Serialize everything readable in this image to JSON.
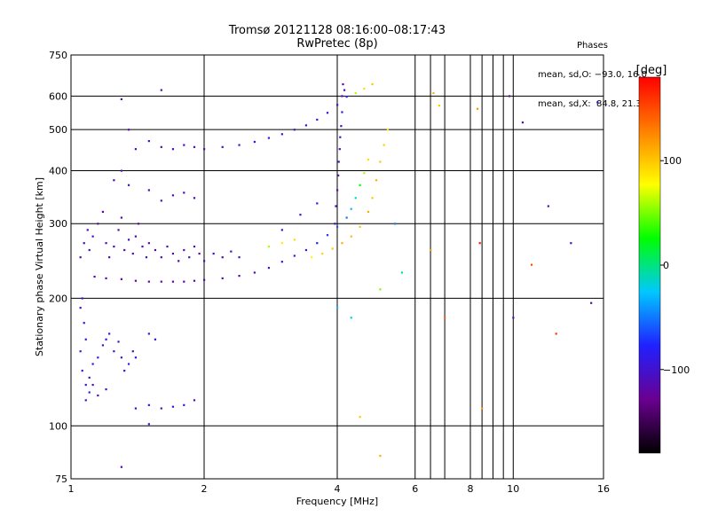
{
  "header": {
    "title_line1": "Tromsø 20121128 08:16:00–08:17:43",
    "title_line2": "RwPretec (8p)"
  },
  "stats": {
    "heading": "Phases",
    "line_o": "mean, sd,O: −93.0, 16.0",
    "line_x": "mean, sd,X:  84.8, 21.3"
  },
  "colorbar": {
    "unit": "[deg]",
    "ticks": [
      {
        "value": 100,
        "label": "100"
      },
      {
        "value": 0,
        "label": "0"
      },
      {
        "value": -100,
        "label": "−100"
      }
    ],
    "range": [
      -180,
      180
    ],
    "colors": [
      "#000000",
      "#6a0090",
      "#2020ff",
      "#00c8ff",
      "#00ff00",
      "#ffff00",
      "#ff8000",
      "#ff0000"
    ]
  },
  "chart_data": {
    "type": "scatter",
    "title": "Tromsø 20121128 08:16:00–08:17:43",
    "subtitle": "RwPretec (8p)",
    "xlabel": "Frequency [MHz]",
    "ylabel": "Stationary phase Virtual Height [km]",
    "xscale": "log",
    "yscale": "log",
    "xlim": [
      1,
      16
    ],
    "ylim": [
      75,
      750
    ],
    "grid": true,
    "xticks": [
      {
        "value": 1,
        "label": "1"
      },
      {
        "value": 2,
        "label": "2"
      },
      {
        "value": 4,
        "label": "4"
      },
      {
        "value": 6,
        "label": "6"
      },
      {
        "value": 8,
        "label": "8"
      },
      {
        "value": 10,
        "label": "10"
      },
      {
        "value": 16,
        "label": "16"
      }
    ],
    "xgrid_minor": [
      6.5,
      7,
      8.5,
      9,
      9.5
    ],
    "yticks": [
      {
        "value": 750,
        "label": "750"
      },
      {
        "value": 600,
        "label": "600"
      },
      {
        "value": 500,
        "label": "500"
      },
      {
        "value": 400,
        "label": "400"
      },
      {
        "value": 300,
        "label": "300"
      },
      {
        "value": 200,
        "label": "200"
      },
      {
        "value": 100,
        "label": "100"
      },
      {
        "value": 75,
        "label": "75"
      }
    ],
    "ygrid": [
      600,
      500,
      400,
      300,
      200,
      100
    ],
    "points": [
      [
        1.05,
        190,
        -110
      ],
      [
        1.06,
        200,
        -105
      ],
      [
        1.07,
        175,
        -100
      ],
      [
        1.08,
        160,
        -95
      ],
      [
        1.05,
        150,
        -90
      ],
      [
        1.06,
        135,
        -80
      ],
      [
        1.08,
        125,
        -90
      ],
      [
        1.1,
        120,
        -95
      ],
      [
        1.1,
        130,
        -100
      ],
      [
        1.12,
        140,
        -90
      ],
      [
        1.15,
        145,
        -85
      ],
      [
        1.18,
        155,
        -95
      ],
      [
        1.2,
        160,
        -100
      ],
      [
        1.22,
        165,
        -90
      ],
      [
        1.25,
        150,
        -95
      ],
      [
        1.28,
        158,
        -105
      ],
      [
        1.3,
        145,
        -100
      ],
      [
        1.32,
        135,
        -95
      ],
      [
        1.35,
        140,
        -90
      ],
      [
        1.38,
        150,
        -100
      ],
      [
        1.12,
        125,
        -110
      ],
      [
        1.15,
        118,
        -105
      ],
      [
        1.2,
        122,
        -100
      ],
      [
        1.08,
        115,
        -95
      ],
      [
        1.4,
        145,
        -95
      ],
      [
        1.05,
        250,
        -110
      ],
      [
        1.07,
        270,
        -105
      ],
      [
        1.09,
        290,
        -110
      ],
      [
        1.1,
        260,
        -100
      ],
      [
        1.12,
        280,
        -105
      ],
      [
        1.15,
        300,
        -110
      ],
      [
        1.18,
        320,
        -115
      ],
      [
        1.2,
        270,
        -105
      ],
      [
        1.22,
        250,
        -110
      ],
      [
        1.25,
        265,
        -115
      ],
      [
        1.28,
        290,
        -110
      ],
      [
        1.3,
        310,
        -115
      ],
      [
        1.32,
        260,
        -110
      ],
      [
        1.35,
        275,
        -105
      ],
      [
        1.38,
        255,
        -110
      ],
      [
        1.4,
        280,
        -110
      ],
      [
        1.42,
        300,
        -115
      ],
      [
        1.45,
        265,
        -110
      ],
      [
        1.48,
        250,
        -105
      ],
      [
        1.5,
        270,
        -110
      ],
      [
        1.55,
        260,
        -115
      ],
      [
        1.6,
        250,
        -110
      ],
      [
        1.65,
        265,
        -105
      ],
      [
        1.7,
        255,
        -110
      ],
      [
        1.75,
        245,
        -115
      ],
      [
        1.8,
        260,
        -110
      ],
      [
        1.85,
        250,
        -105
      ],
      [
        1.9,
        265,
        -110
      ],
      [
        1.95,
        255,
        -115
      ],
      [
        2.0,
        245,
        -110
      ],
      [
        2.1,
        255,
        -105
      ],
      [
        2.2,
        250,
        -110
      ],
      [
        2.3,
        258,
        -100
      ],
      [
        2.4,
        250,
        -105
      ],
      [
        1.13,
        225,
        -115
      ],
      [
        1.2,
        223,
        -118
      ],
      [
        1.3,
        222,
        -120
      ],
      [
        1.4,
        220,
        -120
      ],
      [
        1.5,
        219,
        -118
      ],
      [
        1.6,
        219,
        -120
      ],
      [
        1.7,
        219,
        -118
      ],
      [
        1.8,
        219,
        -115
      ],
      [
        1.9,
        220,
        -118
      ],
      [
        2.0,
        221,
        -115
      ],
      [
        2.2,
        223,
        -112
      ],
      [
        2.4,
        226,
        -110
      ],
      [
        2.6,
        230,
        -108
      ],
      [
        2.8,
        236,
        -105
      ],
      [
        3.0,
        244,
        -100
      ],
      [
        3.2,
        252,
        -95
      ],
      [
        3.4,
        260,
        -90
      ],
      [
        3.6,
        270,
        -80
      ],
      [
        3.8,
        282,
        -70
      ],
      [
        4.0,
        295,
        -60
      ],
      [
        4.2,
        310,
        -50
      ],
      [
        4.3,
        325,
        -30
      ],
      [
        4.4,
        345,
        -10
      ],
      [
        4.5,
        370,
        20
      ],
      [
        4.6,
        395,
        60
      ],
      [
        4.7,
        425,
        90
      ],
      [
        3.5,
        250,
        80
      ],
      [
        3.7,
        255,
        95
      ],
      [
        3.9,
        262,
        100
      ],
      [
        4.1,
        270,
        110
      ],
      [
        4.3,
        280,
        105
      ],
      [
        4.5,
        295,
        100
      ],
      [
        4.7,
        320,
        110
      ],
      [
        4.8,
        345,
        100
      ],
      [
        4.9,
        380,
        110
      ],
      [
        5.0,
        420,
        100
      ],
      [
        5.1,
        460,
        95
      ],
      [
        5.2,
        500,
        90
      ],
      [
        2.8,
        265,
        60
      ],
      [
        3.0,
        270,
        85
      ],
      [
        3.2,
        275,
        90
      ],
      [
        3.95,
        300,
        -110
      ],
      [
        3.97,
        330,
        -110
      ],
      [
        4.0,
        360,
        -115
      ],
      [
        4.02,
        390,
        -110
      ],
      [
        4.03,
        420,
        -105
      ],
      [
        4.05,
        450,
        -110
      ],
      [
        4.06,
        480,
        -105
      ],
      [
        4.08,
        510,
        -110
      ],
      [
        4.1,
        550,
        -100
      ],
      [
        4.1,
        600,
        -110
      ],
      [
        4.15,
        620,
        -105
      ],
      [
        4.12,
        640,
        -110
      ],
      [
        2.0,
        450,
        -110
      ],
      [
        2.2,
        455,
        -105
      ],
      [
        2.4,
        460,
        -100
      ],
      [
        2.6,
        468,
        -90
      ],
      [
        2.8,
        478,
        -85
      ],
      [
        3.0,
        488,
        -100
      ],
      [
        3.2,
        500,
        -105
      ],
      [
        3.4,
        512,
        -100
      ],
      [
        3.6,
        528,
        -95
      ],
      [
        3.8,
        548,
        -100
      ],
      [
        4.0,
        572,
        -105
      ],
      [
        4.2,
        598,
        -80
      ],
      [
        4.4,
        610,
        60
      ],
      [
        4.6,
        625,
        90
      ],
      [
        4.8,
        640,
        100
      ],
      [
        1.4,
        450,
        -110
      ],
      [
        1.5,
        470,
        -105
      ],
      [
        1.6,
        455,
        -110
      ],
      [
        1.7,
        450,
        -105
      ],
      [
        1.8,
        460,
        -110
      ],
      [
        1.9,
        455,
        -105
      ],
      [
        1.35,
        500,
        -110
      ],
      [
        1.3,
        590,
        -115
      ],
      [
        1.6,
        620,
        -110
      ],
      [
        1.25,
        380,
        -115
      ],
      [
        1.3,
        400,
        -110
      ],
      [
        1.35,
        370,
        -105
      ],
      [
        1.5,
        360,
        -110
      ],
      [
        1.6,
        340,
        -105
      ],
      [
        1.7,
        350,
        -110
      ],
      [
        1.8,
        355,
        -115
      ],
      [
        1.9,
        345,
        -110
      ],
      [
        1.4,
        110,
        -100
      ],
      [
        1.5,
        112,
        -95
      ],
      [
        1.6,
        110,
        -100
      ],
      [
        1.7,
        111,
        -95
      ],
      [
        1.8,
        112,
        -100
      ],
      [
        1.9,
        115,
        -110
      ],
      [
        1.5,
        165,
        -95
      ],
      [
        1.55,
        160,
        -100
      ],
      [
        1.3,
        80,
        -110
      ],
      [
        1.5,
        101,
        -100
      ],
      [
        5.0,
        85,
        110
      ],
      [
        4.5,
        105,
        100
      ],
      [
        4.0,
        190,
        -30
      ],
      [
        4.3,
        180,
        -20
      ],
      [
        5.0,
        210,
        50
      ],
      [
        6.5,
        260,
        120
      ],
      [
        6.6,
        610,
        110
      ],
      [
        6.8,
        570,
        100
      ],
      [
        7.0,
        180,
        140
      ],
      [
        8.3,
        560,
        120
      ],
      [
        8.4,
        270,
        170
      ],
      [
        8.5,
        110,
        120
      ],
      [
        9.8,
        600,
        -110
      ],
      [
        10.5,
        520,
        -110
      ],
      [
        12.0,
        330,
        -110
      ],
      [
        13.5,
        270,
        -100
      ],
      [
        15.0,
        195,
        -110
      ],
      [
        15.5,
        580,
        -100
      ],
      [
        11.0,
        240,
        150
      ],
      [
        12.5,
        165,
        160
      ],
      [
        10.0,
        180,
        -110
      ],
      [
        3.0,
        290,
        -100
      ],
      [
        3.3,
        315,
        -90
      ],
      [
        3.6,
        335,
        -85
      ],
      [
        5.4,
        300,
        -50
      ],
      [
        5.6,
        230,
        -10
      ]
    ]
  }
}
